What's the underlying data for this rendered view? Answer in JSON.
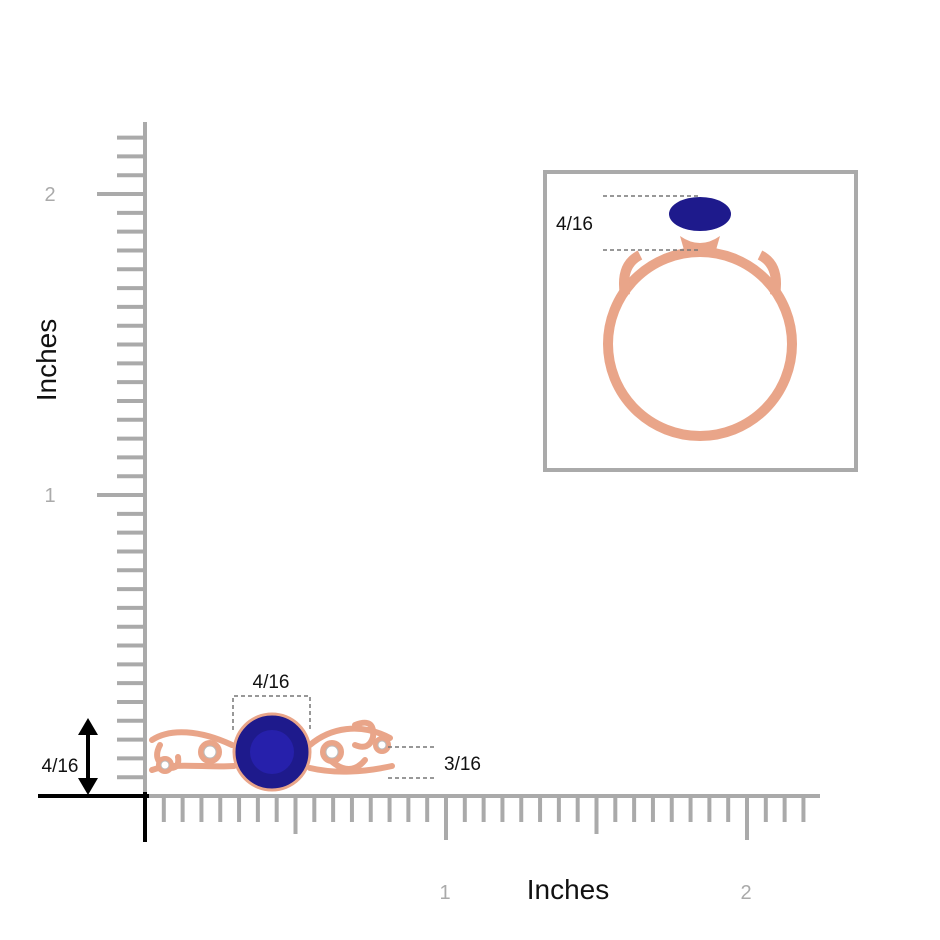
{
  "y_axis": {
    "label": "Inches",
    "ticks": [
      "1",
      "2"
    ]
  },
  "x_axis": {
    "label": "Inches",
    "ticks": [
      "1",
      "2"
    ]
  },
  "dimensions": {
    "stone_width": "4/16",
    "band_width": "3/16",
    "height": "4/16",
    "inset_height": "4/16"
  }
}
